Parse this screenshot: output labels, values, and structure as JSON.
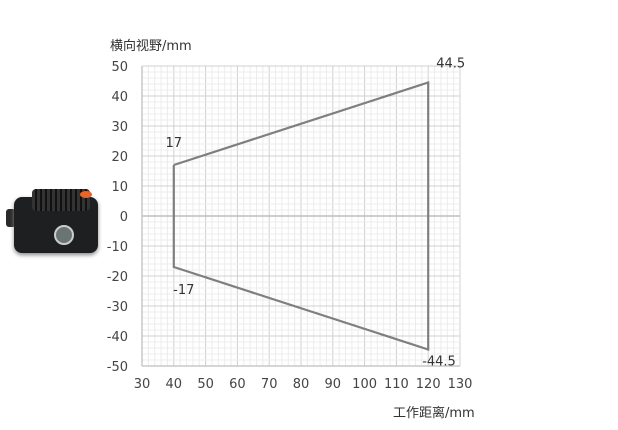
{
  "chart_data": {
    "type": "line",
    "xlabel": "工作距离/mm",
    "ylabel": "横向视野/mm",
    "xlim": [
      30,
      130
    ],
    "ylim": [
      -50,
      50
    ],
    "xticks": [
      30,
      40,
      50,
      60,
      70,
      80,
      90,
      100,
      110,
      120,
      130
    ],
    "yticks": [
      50,
      40,
      30,
      20,
      10,
      0,
      -10,
      -20,
      -30,
      -40,
      -50
    ],
    "grid": true,
    "series": [
      {
        "x": [
          40,
          120,
          120,
          40,
          40
        ],
        "y": [
          17,
          44.5,
          -44.5,
          -17,
          17
        ],
        "color": "#7f7f7f"
      }
    ],
    "annotations": [
      {
        "text": "17",
        "x": 40,
        "y": 17
      },
      {
        "text": "-17",
        "x": 40,
        "y": -17
      },
      {
        "text": "44.5",
        "x": 120,
        "y": 44.5
      },
      {
        "text": "-44.5",
        "x": 120,
        "y": -44.5
      }
    ]
  },
  "product_image": "barcode-reader-camera"
}
